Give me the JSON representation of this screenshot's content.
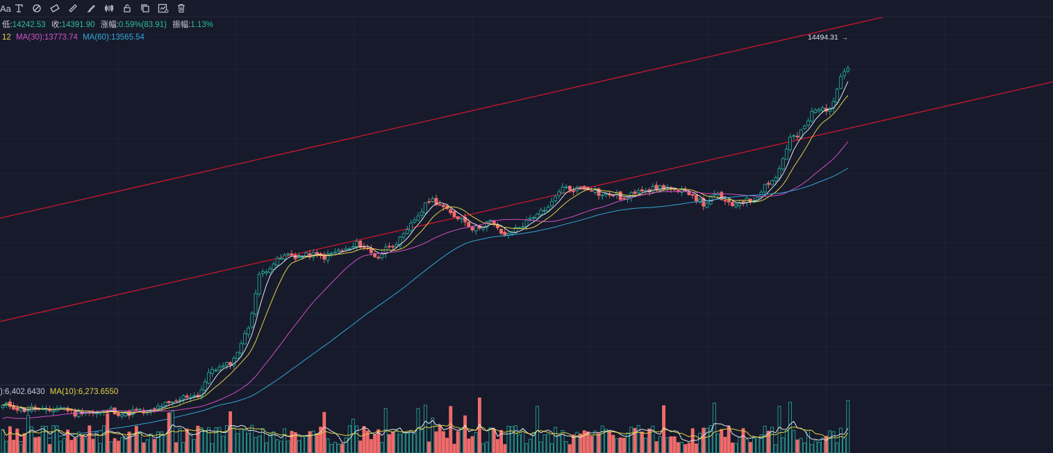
{
  "toolbar": {
    "font_label": "Aa",
    "icons": [
      "text-tool-icon",
      "pattern-tool-icon",
      "shape-tool-icon",
      "ruler-icon",
      "brush-tool-icon",
      "indicator-icon",
      "lock-icon",
      "copy-icon",
      "settings-icon",
      "delete-icon"
    ]
  },
  "info": {
    "low_label": "低:",
    "low_value": "14242.53",
    "close_label": "收:",
    "close_value": "14391.90",
    "change_label": "涨幅:",
    "change_value": "0.59%(83.91)",
    "amp_label": "振幅:",
    "amp_value": "1.13%",
    "ma_partial": "12",
    "ma30_label": "MA(30):",
    "ma30_value": "13773.74",
    "ma60_label": "MA(60):",
    "ma60_value": "13565.54"
  },
  "volume_info": {
    "partial": "):6,402.6430",
    "ma10_label": "MA(10):",
    "ma10_value": "6,273.6550"
  },
  "price_tag": "14494.31",
  "colors": {
    "background": "#161a2b",
    "up": "#26a69a",
    "down": "#ef6b6b",
    "ma5": "#e6e6e6",
    "ma10": "#e5d347",
    "ma30": "#d34fc4",
    "ma60": "#34a7d8",
    "channel": "#c0182d"
  },
  "chart_data": {
    "type": "candlestick",
    "price_range": [
      13000,
      14600
    ],
    "channel_lines": [
      {
        "name": "upper",
        "points": [
          [
            0,
            13827
          ],
          [
            235,
            14542
          ]
        ]
      },
      {
        "name": "lower",
        "points": [
          [
            0,
            13445
          ],
          [
            235,
            14160
          ]
        ]
      }
    ],
    "waypoints": [
      [
        0,
        13132
      ],
      [
        10,
        13117
      ],
      [
        18,
        13123
      ],
      [
        20,
        13108
      ],
      [
        30,
        13112
      ],
      [
        35,
        13106
      ],
      [
        42,
        13118
      ],
      [
        46,
        13142
      ],
      [
        54,
        13178
      ],
      [
        58,
        13264
      ],
      [
        64,
        13300
      ],
      [
        68,
        13430
      ],
      [
        71,
        13607
      ],
      [
        75,
        13668
      ],
      [
        80,
        13690
      ],
      [
        86,
        13686
      ],
      [
        92,
        13695
      ],
      [
        98,
        13730
      ],
      [
        104,
        13688
      ],
      [
        112,
        13775
      ],
      [
        118,
        13900
      ],
      [
        124,
        13848
      ],
      [
        130,
        13795
      ],
      [
        135,
        13808
      ],
      [
        140,
        13760
      ],
      [
        146,
        13830
      ],
      [
        150,
        13848
      ],
      [
        154,
        13928
      ],
      [
        160,
        13944
      ],
      [
        166,
        13918
      ],
      [
        172,
        13900
      ],
      [
        176,
        13930
      ],
      [
        180,
        13940
      ],
      [
        184,
        13936
      ],
      [
        190,
        13918
      ],
      [
        194,
        13884
      ],
      [
        198,
        13908
      ],
      [
        202,
        13874
      ],
      [
        208,
        13902
      ],
      [
        214,
        13982
      ],
      [
        218,
        14118
      ],
      [
        220,
        14128
      ],
      [
        224,
        14212
      ],
      [
        230,
        14250
      ],
      [
        232,
        14355
      ],
      [
        234,
        14392
      ]
    ],
    "candles_count": 235,
    "volume_series_name": "MA(10)"
  }
}
